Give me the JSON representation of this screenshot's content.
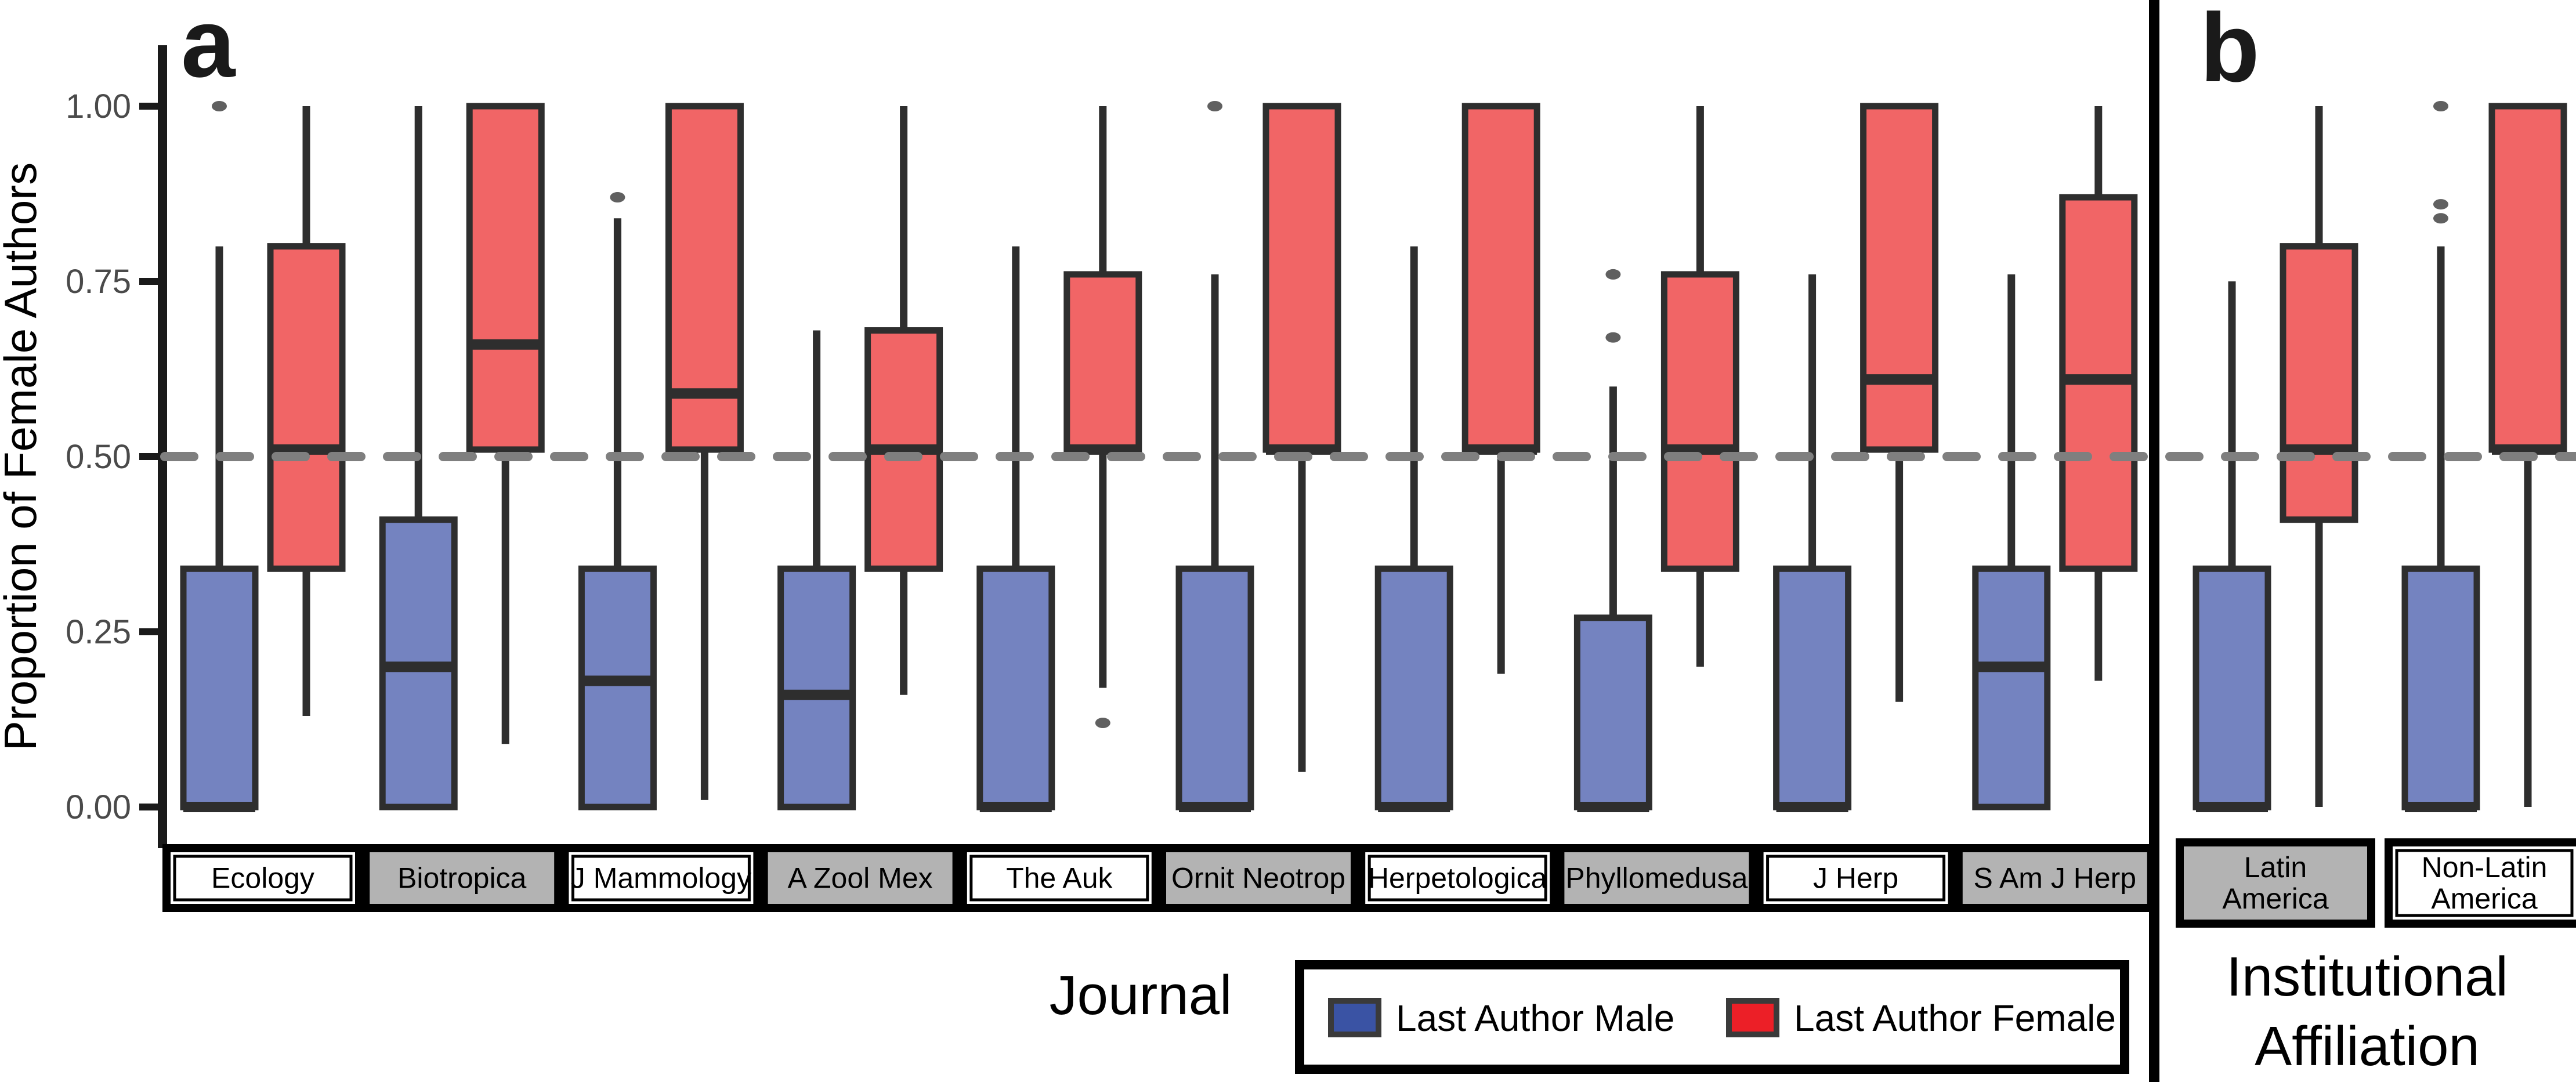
{
  "colors": {
    "box_male_fill": "#7483c0",
    "box_female_fill": "#f16566",
    "box_stroke": "#2e2e2e",
    "whisker_stroke": "#2e2e2e",
    "outlier_fill": "#606060",
    "reference_dash": "#7f7f7f",
    "chip_gray_fill": "#b3b3b3",
    "chip_white_fill": "#ffffff",
    "chip_border": "#000000",
    "legend_male_swatch": "#3a53a4",
    "legend_female_swatch": "#ec1f27",
    "axis_line": "#1a1a1a",
    "tick_label": "#4a4a4a"
  },
  "chart_data": {
    "type": "boxplot",
    "title": "",
    "ylabel": "Proportion of Female Authors",
    "ylim": [
      0,
      1.05
    ],
    "yticks": [
      0.0,
      0.25,
      0.5,
      0.75,
      1.0
    ],
    "ytick_labels": [
      "0.00",
      "0.25",
      "0.50",
      "0.75",
      "1.00"
    ],
    "reference_line": 0.5,
    "grid": "off",
    "legend_position": "bottom-center-boxed",
    "series_legend": [
      {
        "name": "Last Author Male",
        "swatch": "#3a53a4"
      },
      {
        "name": "Last Author Female",
        "swatch": "#ec1f27"
      }
    ],
    "panels": [
      {
        "label": "a",
        "xlabel": "Journal",
        "categories": [
          {
            "name": "Ecology",
            "chip_lines": [
              "Ecology"
            ],
            "chip_shaded": false,
            "male": {
              "whisker_low": 0.0,
              "q1": 0.0,
              "median": 0.0,
              "q3": 0.34,
              "whisker_high": 0.8,
              "outliers": [
                1.0
              ]
            },
            "female": {
              "whisker_low": 0.13,
              "q1": 0.34,
              "median": 0.51,
              "q3": 0.8,
              "whisker_high": 1.0,
              "outliers": []
            }
          },
          {
            "name": "Biotropica",
            "chip_lines": [
              "Biotropica"
            ],
            "chip_shaded": true,
            "male": {
              "whisker_low": 0.0,
              "q1": 0.0,
              "median": 0.2,
              "q3": 0.41,
              "whisker_high": 1.0,
              "outliers": []
            },
            "female": {
              "whisker_low": 0.09,
              "q1": 0.51,
              "median": 0.66,
              "q3": 1.0,
              "whisker_high": 1.0,
              "outliers": []
            }
          },
          {
            "name": "J Mammology",
            "chip_lines": [
              "J Mammology"
            ],
            "chip_shaded": false,
            "male": {
              "whisker_low": 0.0,
              "q1": 0.0,
              "median": 0.18,
              "q3": 0.34,
              "whisker_high": 0.84,
              "outliers": [
                0.87
              ]
            },
            "female": {
              "whisker_low": 0.01,
              "q1": 0.51,
              "median": 0.59,
              "q3": 1.0,
              "whisker_high": 1.0,
              "outliers": []
            }
          },
          {
            "name": "A Zool Mex",
            "chip_lines": [
              "A Zool Mex"
            ],
            "chip_shaded": true,
            "male": {
              "whisker_low": 0.0,
              "q1": 0.0,
              "median": 0.16,
              "q3": 0.34,
              "whisker_high": 0.68,
              "outliers": []
            },
            "female": {
              "whisker_low": 0.16,
              "q1": 0.34,
              "median": 0.51,
              "q3": 0.68,
              "whisker_high": 1.0,
              "outliers": []
            }
          },
          {
            "name": "The Auk",
            "chip_lines": [
              "The Auk"
            ],
            "chip_shaded": false,
            "male": {
              "whisker_low": 0.0,
              "q1": 0.0,
              "median": 0.0,
              "q3": 0.34,
              "whisker_high": 0.8,
              "outliers": []
            },
            "female": {
              "whisker_low": 0.17,
              "q1": 0.51,
              "median": 0.51,
              "q3": 0.76,
              "whisker_high": 1.0,
              "outliers": [
                0.12
              ]
            }
          },
          {
            "name": "Ornit Neotrop",
            "chip_lines": [
              "Ornit Neotrop"
            ],
            "chip_shaded": true,
            "male": {
              "whisker_low": 0.0,
              "q1": 0.0,
              "median": 0.0,
              "q3": 0.34,
              "whisker_high": 0.76,
              "outliers": [
                1.0
              ]
            },
            "female": {
              "whisker_low": 0.05,
              "q1": 0.51,
              "median": 0.51,
              "q3": 1.0,
              "whisker_high": 1.0,
              "outliers": []
            }
          },
          {
            "name": "Herpetologica",
            "chip_lines": [
              "Herpetologica"
            ],
            "chip_shaded": false,
            "male": {
              "whisker_low": 0.0,
              "q1": 0.0,
              "median": 0.0,
              "q3": 0.34,
              "whisker_high": 0.8,
              "outliers": []
            },
            "female": {
              "whisker_low": 0.19,
              "q1": 0.51,
              "median": 0.51,
              "q3": 1.0,
              "whisker_high": 1.0,
              "outliers": []
            }
          },
          {
            "name": "Phyllomedusa",
            "chip_lines": [
              "Phyllomedusa"
            ],
            "chip_shaded": true,
            "male": {
              "whisker_low": 0.0,
              "q1": 0.0,
              "median": 0.0,
              "q3": 0.27,
              "whisker_high": 0.6,
              "outliers": [
                0.67,
                0.76
              ]
            },
            "female": {
              "whisker_low": 0.2,
              "q1": 0.34,
              "median": 0.51,
              "q3": 0.76,
              "whisker_high": 1.0,
              "outliers": []
            }
          },
          {
            "name": "J Herp",
            "chip_lines": [
              "J Herp"
            ],
            "chip_shaded": false,
            "male": {
              "whisker_low": 0.0,
              "q1": 0.0,
              "median": 0.0,
              "q3": 0.34,
              "whisker_high": 0.76,
              "outliers": []
            },
            "female": {
              "whisker_low": 0.15,
              "q1": 0.51,
              "median": 0.61,
              "q3": 1.0,
              "whisker_high": 1.0,
              "outliers": []
            }
          },
          {
            "name": "S Am J Herp",
            "chip_lines": [
              "S Am J Herp"
            ],
            "chip_shaded": true,
            "male": {
              "whisker_low": 0.0,
              "q1": 0.0,
              "median": 0.2,
              "q3": 0.34,
              "whisker_high": 0.76,
              "outliers": []
            },
            "female": {
              "whisker_low": 0.18,
              "q1": 0.34,
              "median": 0.61,
              "q3": 0.87,
              "whisker_high": 1.0,
              "outliers": []
            }
          }
        ]
      },
      {
        "label": "b",
        "xlabel_lines": [
          "Institutional",
          "Affiliation"
        ],
        "categories": [
          {
            "name": "Latin America",
            "chip_lines": [
              "Latin",
              "America"
            ],
            "chip_shaded": true,
            "male": {
              "whisker_low": 0.0,
              "q1": 0.0,
              "median": 0.0,
              "q3": 0.34,
              "whisker_high": 0.75,
              "outliers": []
            },
            "female": {
              "whisker_low": 0.0,
              "q1": 0.41,
              "median": 0.51,
              "q3": 0.8,
              "whisker_high": 1.0,
              "outliers": []
            }
          },
          {
            "name": "Non-Latin America",
            "chip_lines": [
              "Non-Latin",
              "America"
            ],
            "chip_shaded": false,
            "male": {
              "whisker_low": 0.0,
              "q1": 0.0,
              "median": 0.0,
              "q3": 0.34,
              "whisker_high": 0.8,
              "outliers": [
                0.84,
                0.86,
                1.0
              ]
            },
            "female": {
              "whisker_low": 0.0,
              "q1": 0.51,
              "median": 0.51,
              "q3": 1.0,
              "whisker_high": 1.0,
              "outliers": []
            }
          }
        ]
      }
    ]
  }
}
